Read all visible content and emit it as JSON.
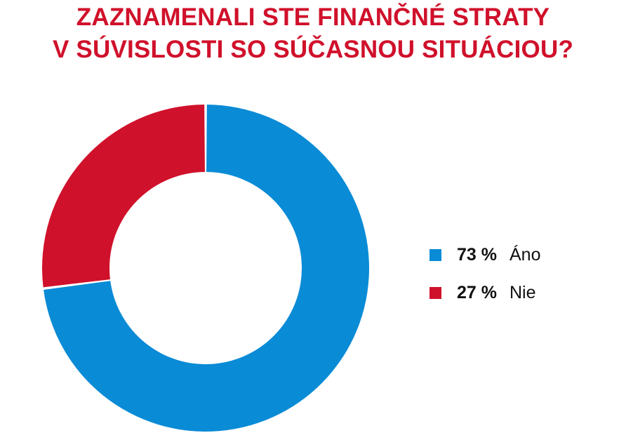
{
  "title": {
    "line1": "ZAZNAMENALI STE FINANČNÉ STRATY",
    "line2": "V SÚVISLOSTI SO SÚČASNOU SITUÁCIOU?"
  },
  "chart_data": {
    "type": "pie",
    "variant": "donut",
    "title": "ZAZNAMENALI STE FINANČNÉ STRATY V SÚVISLOSTI SO SÚČASNOU SITUÁCIOU?",
    "legend_position": "right",
    "slices": [
      {
        "label": "Áno",
        "value": 73,
        "display": "73 %",
        "color": "#0a8bd6"
      },
      {
        "label": "Nie",
        "value": 27,
        "display": "27 %",
        "color": "#d0112b"
      }
    ]
  }
}
